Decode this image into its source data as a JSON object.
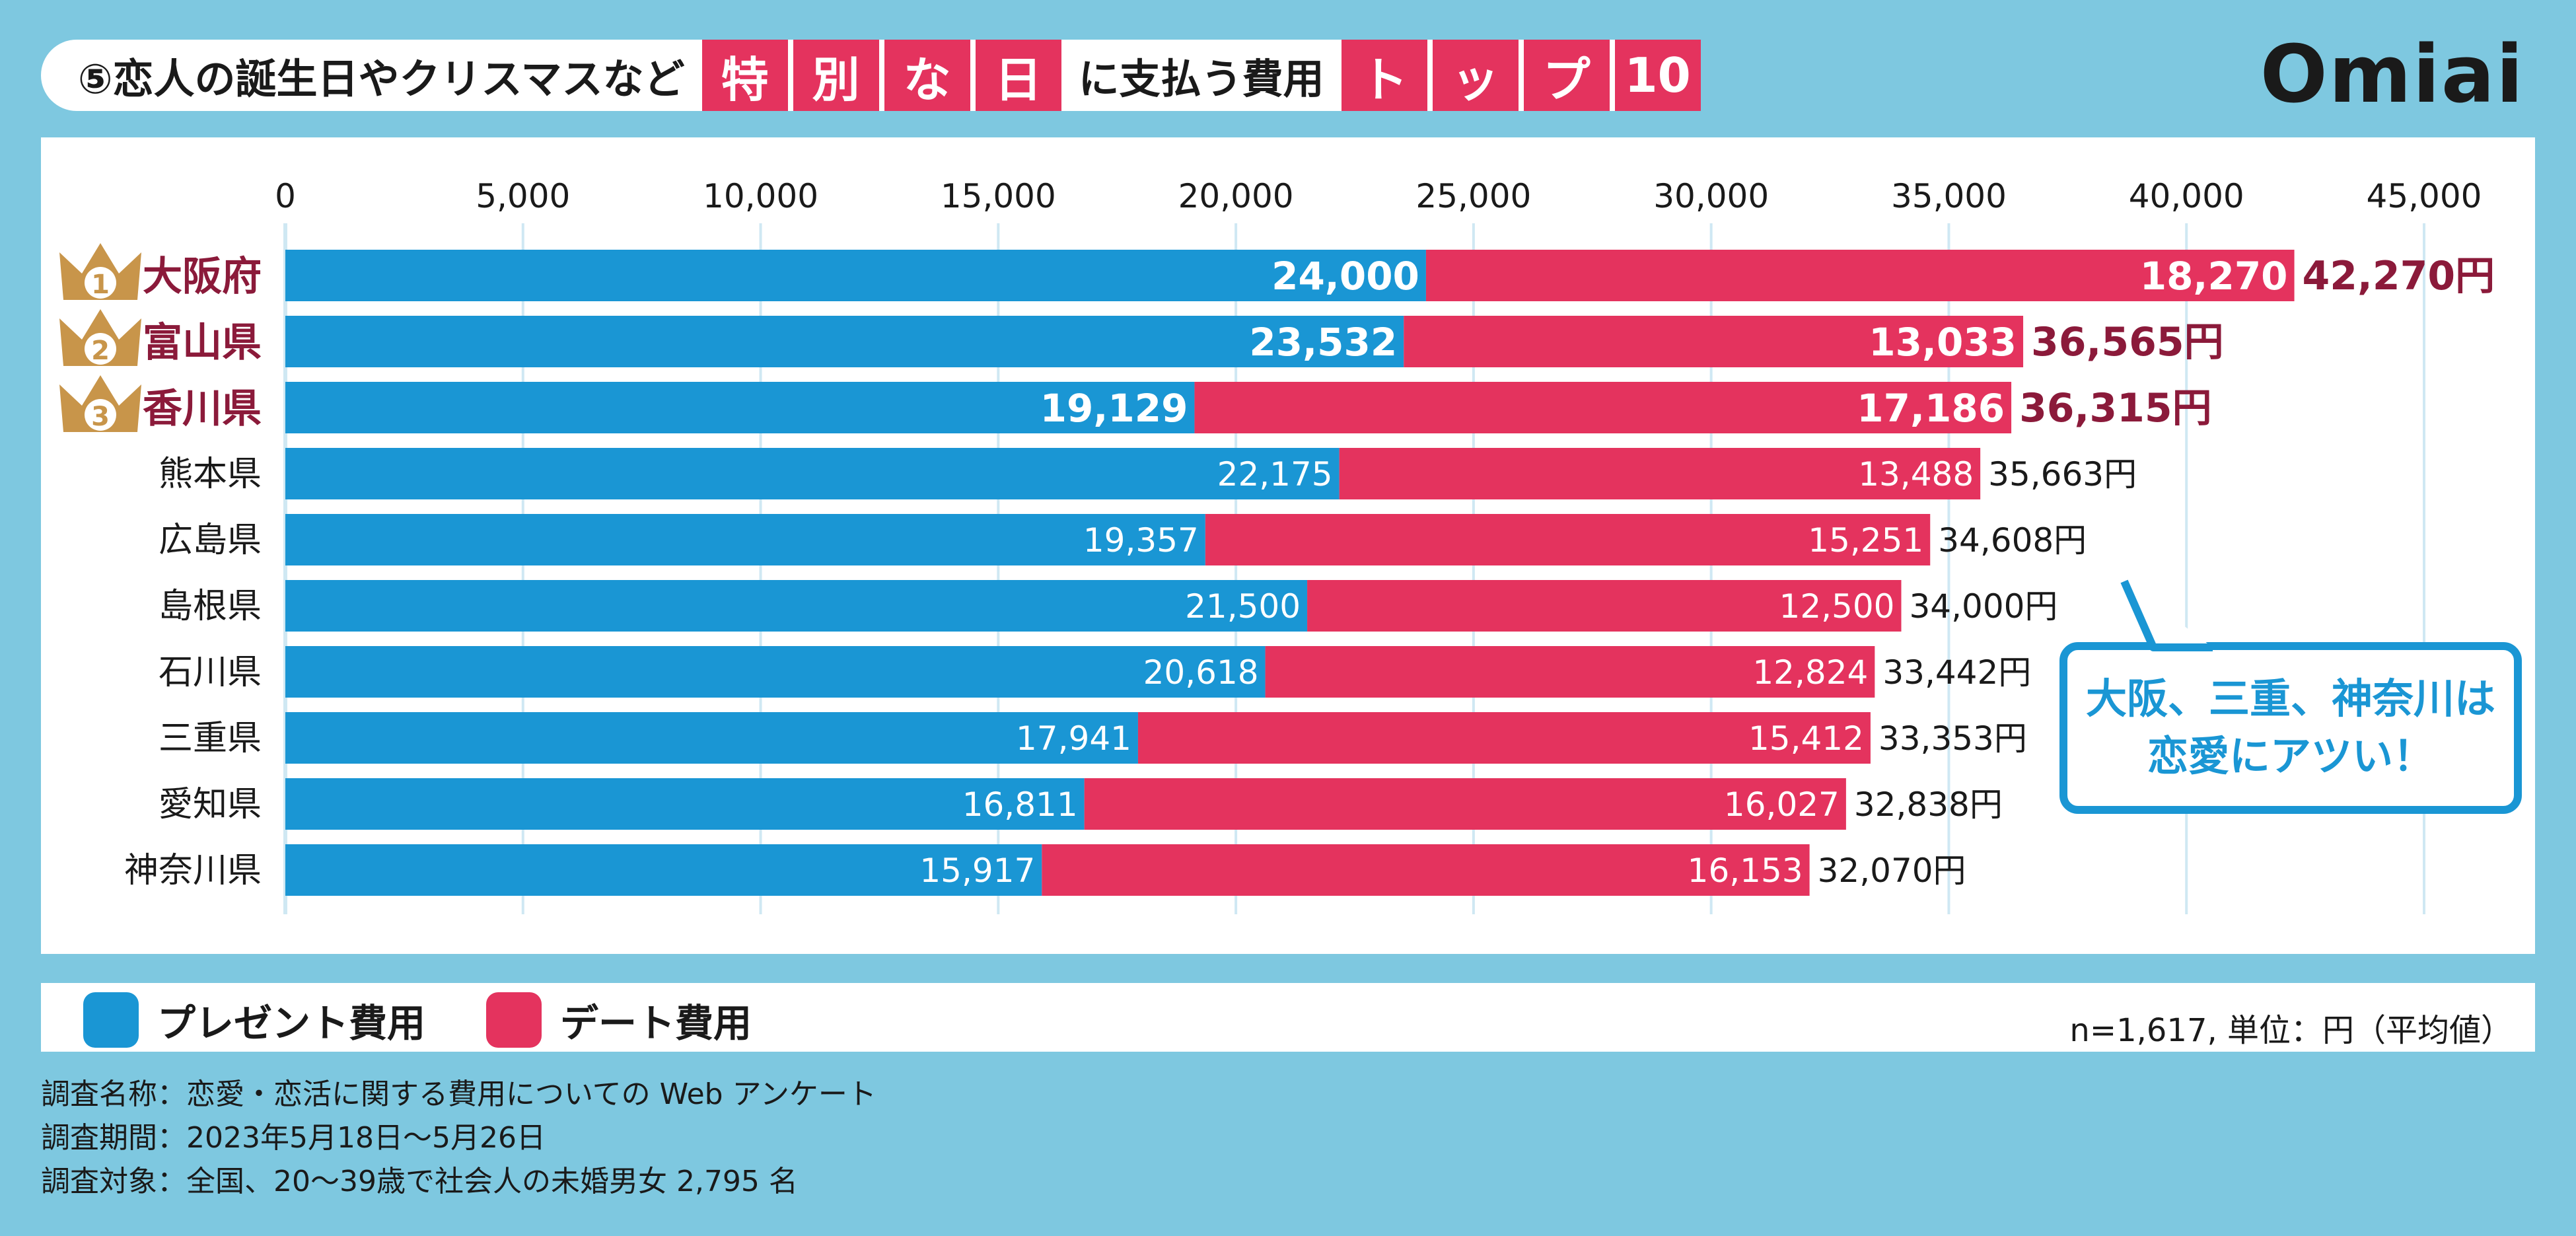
{
  "header": {
    "title_prefix": "⑤恋人の誕生日やクリスマスなど",
    "highlight1": [
      "特",
      "別",
      "な",
      "日"
    ],
    "title_mid": "に支払う費用",
    "highlight2": [
      "ト",
      "ッ",
      "プ",
      "10"
    ],
    "logo": "Omiai"
  },
  "colors": {
    "present": "#1a96d4",
    "date": "#e4335e",
    "accent_text": "#8b1a3a",
    "crown": "#c8954a"
  },
  "chart_data": {
    "type": "bar",
    "orientation": "horizontal",
    "stacked": true,
    "xlim": [
      0,
      45000
    ],
    "ticks": [
      0,
      5000,
      10000,
      15000,
      20000,
      25000,
      30000,
      35000,
      40000,
      45000
    ],
    "tick_labels": [
      "0",
      "5,000",
      "10,000",
      "15,000",
      "20,000",
      "25,000",
      "30,000",
      "35,000",
      "40,000",
      "45,000"
    ],
    "unit_suffix": "円",
    "categories": [
      "大阪府",
      "富山県",
      "香川県",
      "熊本県",
      "広島県",
      "島根県",
      "石川県",
      "三重県",
      "愛知県",
      "神奈川県"
    ],
    "ranks": [
      "1",
      "2",
      "3"
    ],
    "series": [
      {
        "name": "プレゼント費用",
        "values": [
          24000,
          23532,
          19129,
          22175,
          19357,
          21500,
          20618,
          17941,
          16811,
          15917
        ],
        "labels": [
          "24,000",
          "23,532",
          "19,129",
          "22,175",
          "19,357",
          "21,500",
          "20,618",
          "17,941",
          "16,811",
          "15,917"
        ]
      },
      {
        "name": "デート費用",
        "values": [
          18270,
          13033,
          17186,
          13488,
          15251,
          12500,
          12824,
          15412,
          16027,
          16153
        ],
        "labels": [
          "18,270",
          "13,033",
          "17,186",
          "13,488",
          "15,251",
          "12,500",
          "12,824",
          "15,412",
          "16,027",
          "16,153"
        ]
      }
    ],
    "totals": [
      "42,270",
      "36,565",
      "36,315",
      "35,663",
      "34,608",
      "34,000",
      "33,442",
      "33,353",
      "32,838",
      "32,070"
    ]
  },
  "callout": {
    "line1": "大阪、三重、神奈川は",
    "line2": "恋愛にアツい！"
  },
  "legend": {
    "present": "プレゼント費用",
    "date": "デート費用"
  },
  "note": "n=1,617, 単位：円（平均値）",
  "survey": {
    "name": "調査名称：恋愛・恋活に関する費用についての Web アンケート",
    "period": "調査期間：2023年5月18日〜5月26日",
    "target": "調査対象：全国、20〜39歳で社会人の未婚男女 2,795 名"
  }
}
